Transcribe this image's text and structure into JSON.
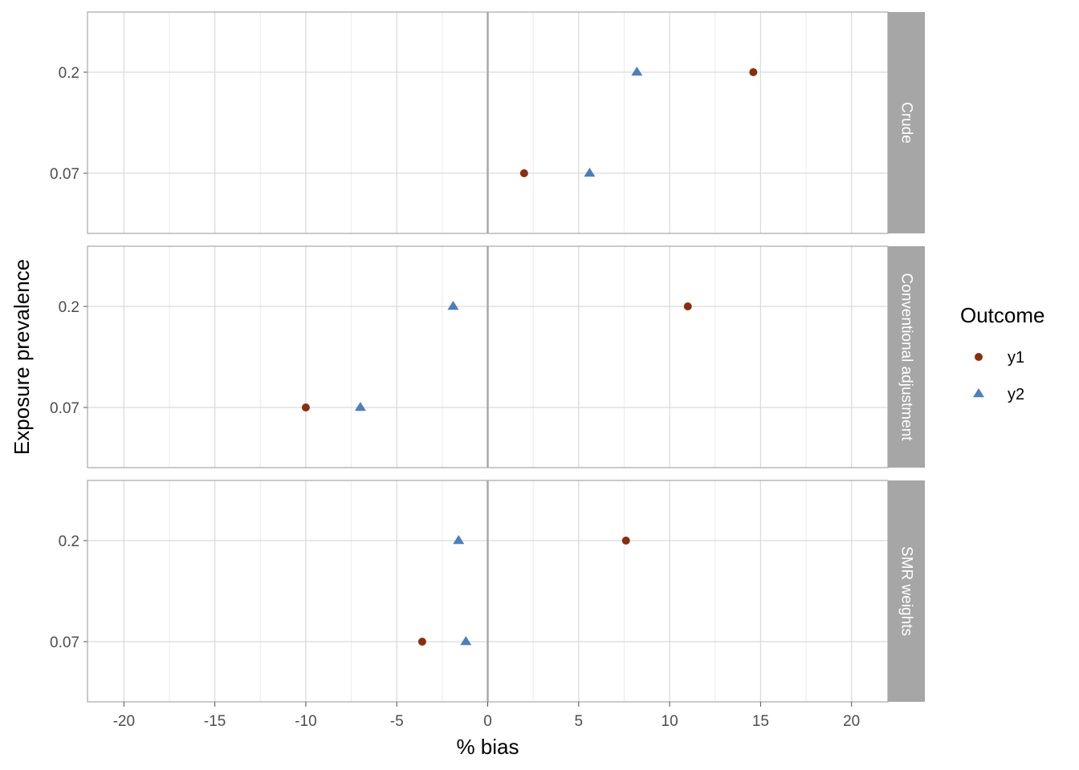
{
  "chart_data": {
    "type": "scatter",
    "xlabel": "% bias",
    "ylabel": "Exposure prevalence",
    "xlim": [
      -22,
      22
    ],
    "x_ticks": [
      -20,
      -15,
      -10,
      -5,
      0,
      5,
      10,
      15,
      20
    ],
    "x_tick_labels": [
      "-20",
      "-15",
      "-10",
      "-5",
      "0",
      "5",
      "10",
      "15",
      "20"
    ],
    "y_categories": [
      "0.07",
      "0.2"
    ],
    "grid": true,
    "vline_x": 0,
    "legend": {
      "title": "Outcome",
      "position": "right",
      "items": [
        {
          "name": "y1",
          "shape": "circle",
          "color": "#8B2E0B"
        },
        {
          "name": "y2",
          "shape": "triangle",
          "color": "#4A7FC1"
        }
      ]
    },
    "panels": [
      {
        "label": "Crude",
        "series": [
          {
            "name": "y1",
            "points": [
              {
                "x": 2.0,
                "y": "0.07"
              },
              {
                "x": 14.6,
                "y": "0.2"
              }
            ]
          },
          {
            "name": "y2",
            "points": [
              {
                "x": 5.6,
                "y": "0.07"
              },
              {
                "x": 8.2,
                "y": "0.2"
              }
            ]
          }
        ]
      },
      {
        "label": "Conventional adjustment",
        "series": [
          {
            "name": "y1",
            "points": [
              {
                "x": -10.0,
                "y": "0.07"
              },
              {
                "x": 11.0,
                "y": "0.2"
              }
            ]
          },
          {
            "name": "y2",
            "points": [
              {
                "x": -7.0,
                "y": "0.07"
              },
              {
                "x": -1.9,
                "y": "0.2"
              }
            ]
          }
        ]
      },
      {
        "label": "SMR weights",
        "series": [
          {
            "name": "y1",
            "points": [
              {
                "x": -3.6,
                "y": "0.07"
              },
              {
                "x": 7.6,
                "y": "0.2"
              }
            ]
          },
          {
            "name": "y2",
            "points": [
              {
                "x": -1.2,
                "y": "0.07"
              },
              {
                "x": -1.6,
                "y": "0.2"
              }
            ]
          }
        ]
      }
    ]
  }
}
